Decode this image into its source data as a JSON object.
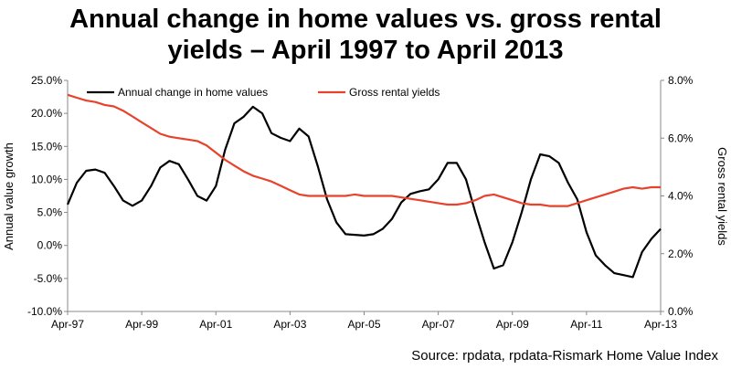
{
  "title_line1": "Annual change in home values vs. gross rental",
  "title_line2": "yields – April 1997 to April 2013",
  "source": "Source: rpdata, rpdata-Rismark Home Value Index",
  "chart_data": {
    "type": "line",
    "title": "Annual change in home values vs. gross rental yields – April 1997 to April 2013",
    "ylabel": "Annual value growth",
    "y2label": "Gross rental yields",
    "ylim": [
      -10,
      25
    ],
    "y2lim": [
      0,
      8
    ],
    "xlim": [
      1997.25,
      2013.25
    ],
    "yticks": [
      "25.0%",
      "20.0%",
      "15.0%",
      "10.0%",
      "5.0%",
      "0.0%",
      "-5.0%",
      "-10.0%"
    ],
    "y2ticks": [
      "8.0%",
      "6.0%",
      "4.0%",
      "2.0%",
      "0.0%"
    ],
    "xticks": [
      "Apr-97",
      "Apr-99",
      "Apr-01",
      "Apr-03",
      "Apr-05",
      "Apr-07",
      "Apr-09",
      "Apr-11",
      "Apr-13"
    ],
    "legend": "top",
    "grid": false,
    "series": [
      {
        "name": "Annual change in home values",
        "axis": "left",
        "color": "#000000",
        "points": [
          [
            1997.25,
            6.2
          ],
          [
            1997.5,
            9.5
          ],
          [
            1997.75,
            11.3
          ],
          [
            1998.0,
            11.5
          ],
          [
            1998.25,
            11.0
          ],
          [
            1998.5,
            9.0
          ],
          [
            1998.75,
            6.8
          ],
          [
            1999.0,
            6.0
          ],
          [
            1999.25,
            6.8
          ],
          [
            1999.5,
            9.0
          ],
          [
            1999.75,
            11.8
          ],
          [
            2000.0,
            12.8
          ],
          [
            2000.25,
            12.3
          ],
          [
            2000.5,
            10.0
          ],
          [
            2000.75,
            7.5
          ],
          [
            2001.0,
            6.8
          ],
          [
            2001.25,
            9.0
          ],
          [
            2001.5,
            14.5
          ],
          [
            2001.75,
            18.5
          ],
          [
            2002.0,
            19.5
          ],
          [
            2002.25,
            21.0
          ],
          [
            2002.5,
            20.0
          ],
          [
            2002.75,
            17.0
          ],
          [
            2003.0,
            16.3
          ],
          [
            2003.25,
            15.8
          ],
          [
            2003.5,
            17.7
          ],
          [
            2003.75,
            16.5
          ],
          [
            2004.0,
            12.0
          ],
          [
            2004.25,
            7.0
          ],
          [
            2004.5,
            3.5
          ],
          [
            2004.75,
            1.7
          ],
          [
            2005.0,
            1.6
          ],
          [
            2005.25,
            1.5
          ],
          [
            2005.5,
            1.7
          ],
          [
            2005.75,
            2.5
          ],
          [
            2006.0,
            4.0
          ],
          [
            2006.25,
            6.5
          ],
          [
            2006.5,
            7.8
          ],
          [
            2006.75,
            8.2
          ],
          [
            2007.0,
            8.5
          ],
          [
            2007.25,
            10.0
          ],
          [
            2007.5,
            12.5
          ],
          [
            2007.75,
            12.5
          ],
          [
            2008.0,
            10.0
          ],
          [
            2008.25,
            5.0
          ],
          [
            2008.5,
            0.5
          ],
          [
            2008.75,
            -3.5
          ],
          [
            2009.0,
            -3.0
          ],
          [
            2009.25,
            0.5
          ],
          [
            2009.5,
            5.0
          ],
          [
            2009.75,
            10.0
          ],
          [
            2010.0,
            13.8
          ],
          [
            2010.25,
            13.5
          ],
          [
            2010.5,
            12.5
          ],
          [
            2010.75,
            9.5
          ],
          [
            2011.0,
            7.0
          ],
          [
            2011.25,
            2.0
          ],
          [
            2011.5,
            -1.5
          ],
          [
            2011.75,
            -3.0
          ],
          [
            2012.0,
            -4.2
          ],
          [
            2012.25,
            -4.5
          ],
          [
            2012.5,
            -4.8
          ],
          [
            2012.75,
            -1.0
          ],
          [
            2013.0,
            1.0
          ],
          [
            2013.25,
            2.5
          ]
        ]
      },
      {
        "name": "Gross rental yields",
        "axis": "right",
        "color": "#e8412c",
        "points": [
          [
            1997.25,
            7.5
          ],
          [
            1997.5,
            7.4
          ],
          [
            1997.75,
            7.3
          ],
          [
            1998.0,
            7.25
          ],
          [
            1998.25,
            7.15
          ],
          [
            1998.5,
            7.1
          ],
          [
            1998.75,
            6.95
          ],
          [
            1999.0,
            6.75
          ],
          [
            1999.25,
            6.55
          ],
          [
            1999.5,
            6.35
          ],
          [
            1999.75,
            6.15
          ],
          [
            2000.0,
            6.05
          ],
          [
            2000.25,
            6.0
          ],
          [
            2000.5,
            5.95
          ],
          [
            2000.75,
            5.9
          ],
          [
            2001.0,
            5.75
          ],
          [
            2001.25,
            5.5
          ],
          [
            2001.5,
            5.25
          ],
          [
            2001.75,
            5.05
          ],
          [
            2002.0,
            4.85
          ],
          [
            2002.25,
            4.7
          ],
          [
            2002.5,
            4.6
          ],
          [
            2002.75,
            4.5
          ],
          [
            2003.0,
            4.35
          ],
          [
            2003.25,
            4.2
          ],
          [
            2003.5,
            4.05
          ],
          [
            2003.75,
            4.0
          ],
          [
            2004.0,
            4.0
          ],
          [
            2004.25,
            4.0
          ],
          [
            2004.5,
            4.0
          ],
          [
            2004.75,
            4.0
          ],
          [
            2005.0,
            4.05
          ],
          [
            2005.25,
            4.0
          ],
          [
            2005.5,
            4.0
          ],
          [
            2005.75,
            4.0
          ],
          [
            2006.0,
            4.0
          ],
          [
            2006.25,
            3.95
          ],
          [
            2006.5,
            3.9
          ],
          [
            2006.75,
            3.85
          ],
          [
            2007.0,
            3.8
          ],
          [
            2007.25,
            3.75
          ],
          [
            2007.5,
            3.7
          ],
          [
            2007.75,
            3.7
          ],
          [
            2008.0,
            3.75
          ],
          [
            2008.25,
            3.85
          ],
          [
            2008.5,
            4.0
          ],
          [
            2008.75,
            4.05
          ],
          [
            2009.0,
            3.95
          ],
          [
            2009.25,
            3.85
          ],
          [
            2009.5,
            3.75
          ],
          [
            2009.75,
            3.7
          ],
          [
            2010.0,
            3.7
          ],
          [
            2010.25,
            3.65
          ],
          [
            2010.5,
            3.65
          ],
          [
            2010.75,
            3.65
          ],
          [
            2011.0,
            3.75
          ],
          [
            2011.25,
            3.85
          ],
          [
            2011.5,
            3.95
          ],
          [
            2011.75,
            4.05
          ],
          [
            2012.0,
            4.15
          ],
          [
            2012.25,
            4.25
          ],
          [
            2012.5,
            4.3
          ],
          [
            2012.75,
            4.25
          ],
          [
            2013.0,
            4.3
          ],
          [
            2013.25,
            4.3
          ]
        ]
      }
    ]
  }
}
